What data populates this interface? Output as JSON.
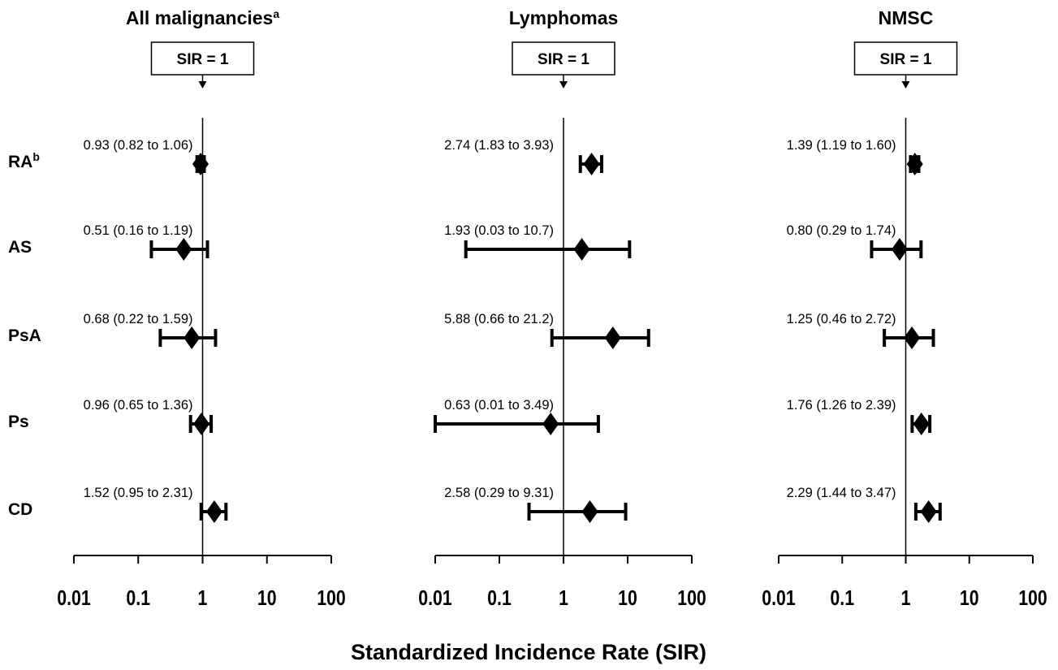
{
  "chart_data": {
    "type": "forest",
    "xlabel": "Standardized Incidence Rate (SIR)",
    "x_scale": "log",
    "xlim": [
      0.01,
      100
    ],
    "x_ticks": [
      "0.01",
      "0.1",
      "1",
      "10",
      "100"
    ],
    "reference_label": "SIR = 1",
    "reference_value": 1,
    "rows": [
      {
        "label": "RA",
        "sup": "b"
      },
      {
        "label": "AS",
        "sup": ""
      },
      {
        "label": "PsA",
        "sup": ""
      },
      {
        "label": "Ps",
        "sup": ""
      },
      {
        "label": "CD",
        "sup": ""
      }
    ],
    "panels": [
      {
        "title": "All malignancies",
        "title_sup": "a",
        "points": [
          {
            "row": "RA",
            "sir": 0.93,
            "lower": 0.82,
            "upper": 1.06,
            "text": "0.93 (0.82 to 1.06)"
          },
          {
            "row": "AS",
            "sir": 0.51,
            "lower": 0.16,
            "upper": 1.19,
            "text": "0.51 (0.16 to 1.19)"
          },
          {
            "row": "PsA",
            "sir": 0.68,
            "lower": 0.22,
            "upper": 1.59,
            "text": "0.68 (0.22 to 1.59)"
          },
          {
            "row": "Ps",
            "sir": 0.96,
            "lower": 0.65,
            "upper": 1.36,
            "text": "0.96 (0.65 to 1.36)"
          },
          {
            "row": "CD",
            "sir": 1.52,
            "lower": 0.95,
            "upper": 2.31,
            "text": "1.52 (0.95 to 2.31)"
          }
        ]
      },
      {
        "title": "Lymphomas",
        "title_sup": "",
        "points": [
          {
            "row": "RA",
            "sir": 2.74,
            "lower": 1.83,
            "upper": 3.93,
            "text": "2.74 (1.83 to 3.93)"
          },
          {
            "row": "AS",
            "sir": 1.93,
            "lower": 0.03,
            "upper": 10.7,
            "text": "1.93 (0.03 to 10.7)"
          },
          {
            "row": "PsA",
            "sir": 5.88,
            "lower": 0.66,
            "upper": 21.2,
            "text": "5.88 (0.66 to 21.2)"
          },
          {
            "row": "Ps",
            "sir": 0.63,
            "lower": 0.01,
            "upper": 3.49,
            "text": "0.63 (0.01 to 3.49)"
          },
          {
            "row": "CD",
            "sir": 2.58,
            "lower": 0.29,
            "upper": 9.31,
            "text": "2.58 (0.29 to 9.31)"
          }
        ]
      },
      {
        "title": "NMSC",
        "title_sup": "",
        "points": [
          {
            "row": "RA",
            "sir": 1.39,
            "lower": 1.19,
            "upper": 1.6,
            "text": "1.39 (1.19 to 1.60)"
          },
          {
            "row": "AS",
            "sir": 0.8,
            "lower": 0.29,
            "upper": 1.74,
            "text": "0.80 (0.29 to 1.74)"
          },
          {
            "row": "PsA",
            "sir": 1.25,
            "lower": 0.46,
            "upper": 2.72,
            "text": "1.25 (0.46 to 2.72)"
          },
          {
            "row": "Ps",
            "sir": 1.76,
            "lower": 1.26,
            "upper": 2.39,
            "text": "1.76 (1.26 to 2.39)"
          },
          {
            "row": "CD",
            "sir": 2.29,
            "lower": 1.44,
            "upper": 3.47,
            "text": "2.29 (1.44 to 3.47)"
          }
        ]
      }
    ]
  }
}
